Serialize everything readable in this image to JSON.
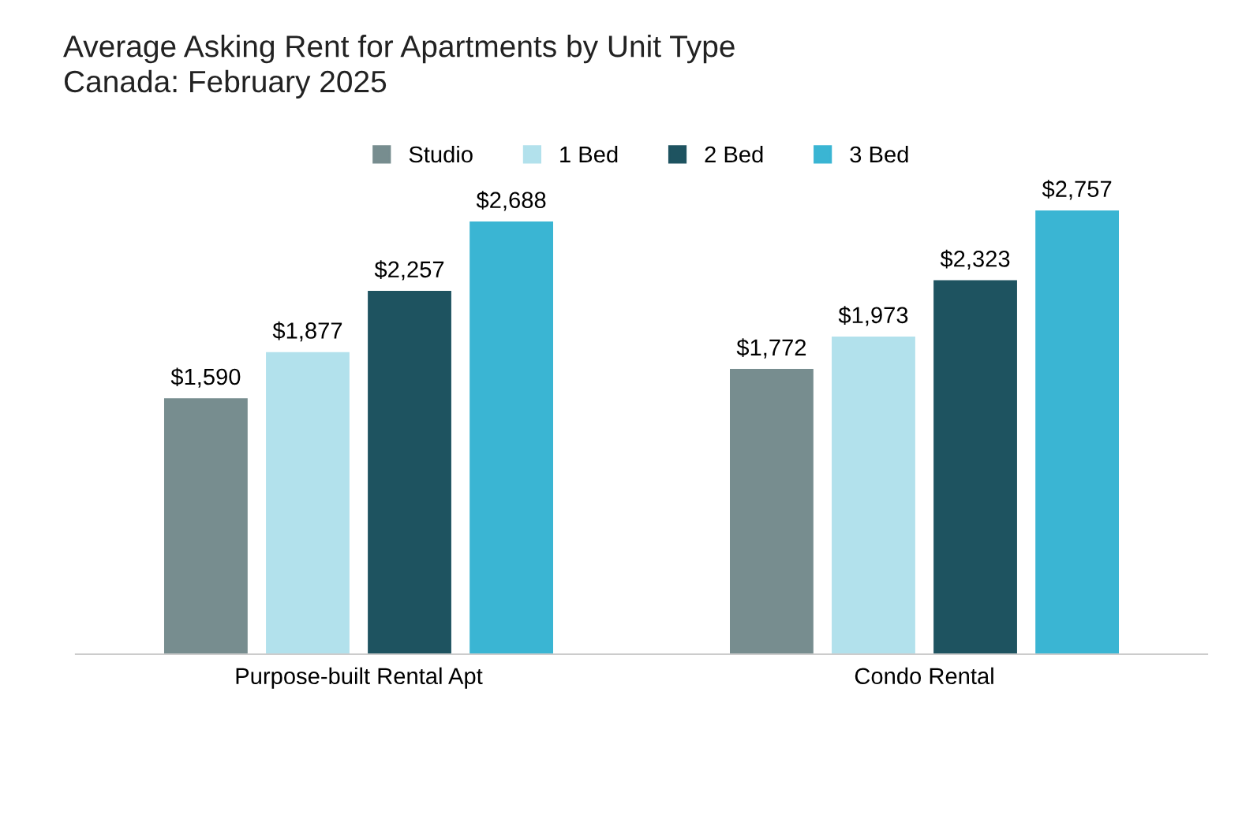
{
  "chart_data": {
    "type": "bar",
    "title": "Average Asking Rent for Apartments by Unit Type\nCanada: February 2025",
    "categories": [
      "Purpose-built Rental Apt",
      "Condo Rental"
    ],
    "series": [
      {
        "name": "Studio",
        "color": "#778d8f",
        "values": [
          1590,
          1772
        ],
        "value_labels": [
          "$1,590",
          "$1,772"
        ]
      },
      {
        "name": "1 Bed",
        "color": "#b2e1ec",
        "values": [
          1877,
          1973
        ],
        "value_labels": [
          "$1,877",
          "$1,973"
        ]
      },
      {
        "name": "2 Bed",
        "color": "#1e5360",
        "values": [
          2257,
          2323
        ],
        "value_labels": [
          "$2,257",
          "$2,323"
        ]
      },
      {
        "name": "3 Bed",
        "color": "#3ab5d3",
        "values": [
          2688,
          2757
        ],
        "value_labels": [
          "$2,688",
          "$2,757"
        ]
      }
    ],
    "tick_labels": "x",
    "legend": "top",
    "grid": false
  }
}
